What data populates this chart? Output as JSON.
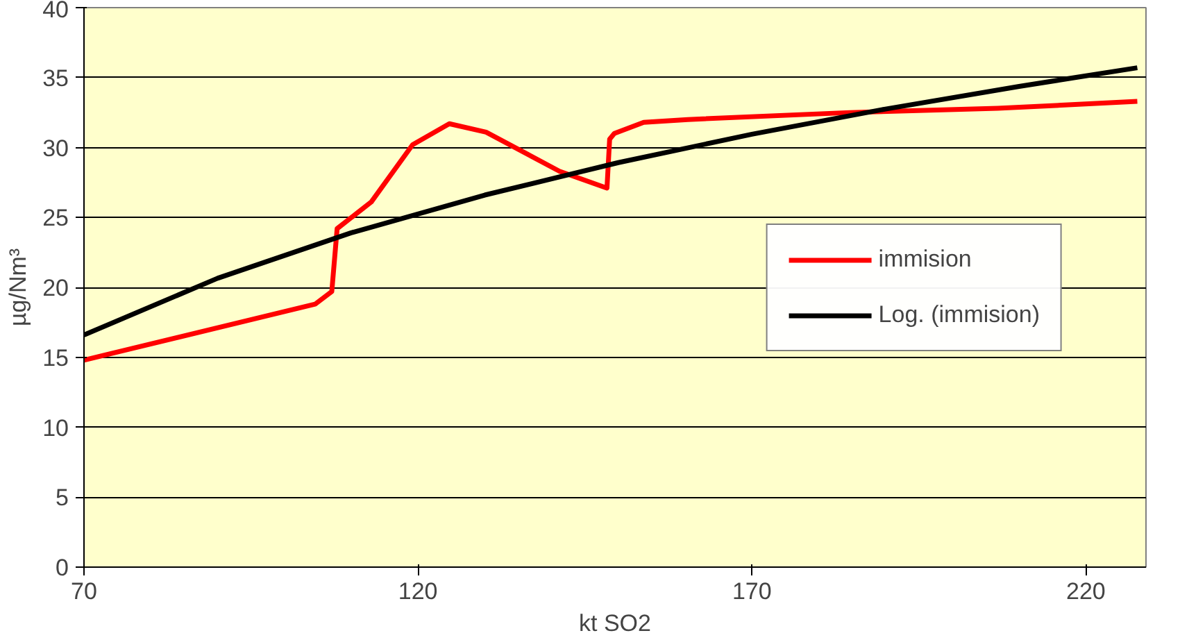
{
  "chart_data": {
    "type": "line",
    "xlabel": "kt SO2",
    "ylabel": "µg/Nm³",
    "xlim": [
      70,
      229
    ],
    "ylim": [
      0,
      40
    ],
    "xticks": [
      70,
      120,
      170,
      220
    ],
    "yticks": [
      0,
      5,
      10,
      15,
      20,
      25,
      30,
      35,
      40
    ],
    "grid": "y",
    "legend": "right",
    "marker": "none",
    "line_style": "solid",
    "series": [
      {
        "name": "immision",
        "color": "#ff0000",
        "x": [
          70,
          104.6,
          107.1,
          107.9,
          113,
          119.2,
          124.7,
          130.2,
          141.2,
          148.3,
          148.7,
          149.4,
          153.8,
          160.4,
          184.7,
          206.8,
          227.7
        ],
        "values": [
          14.8,
          18.8,
          19.7,
          24.2,
          26.1,
          30.2,
          31.7,
          31.1,
          28.3,
          27.1,
          30.6,
          31,
          31.8,
          32,
          32.5,
          32.8,
          33.3
        ]
      },
      {
        "name": "Log. (immision)",
        "color": "#000000",
        "x": [
          70,
          90,
          110,
          130,
          150,
          170,
          190,
          210,
          227.7
        ],
        "values": [
          16.6,
          20.65,
          23.9,
          26.6,
          28.92,
          30.95,
          32.75,
          34.37,
          35.7
        ]
      }
    ]
  }
}
